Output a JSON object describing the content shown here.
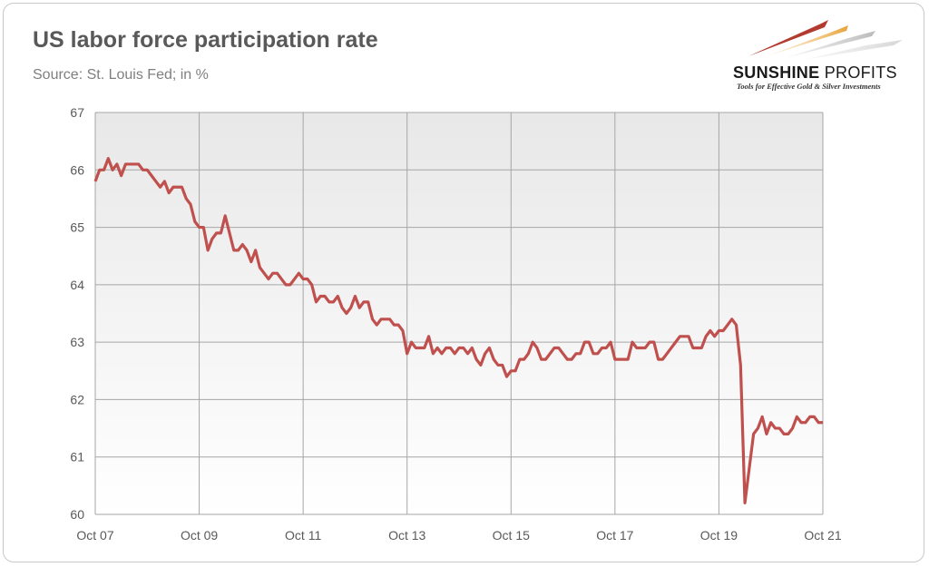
{
  "header": {
    "title": "US labor force participation rate",
    "subtitle": "Source: St. Louis Fed; in %"
  },
  "logo": {
    "name_bold": "SUNSHINE",
    "name_light": "PROFITS",
    "tagline": "Tools for Effective Gold & Silver Investments"
  },
  "colors": {
    "line": "#c0504d",
    "grid": "#a6a6a6",
    "plot_bg_top": "#e8e8e8",
    "plot_bg_bottom": "#ffffff"
  },
  "chart_data": {
    "type": "line",
    "title": "US labor force participation rate",
    "subtitle": "Source: St. Louis Fed; in %",
    "xlabel": "",
    "ylabel": "",
    "x_start": "Oct 07",
    "x_end": "Oct 21",
    "x_ticks": [
      "Oct 07",
      "Oct 09",
      "Oct 11",
      "Oct 13",
      "Oct 15",
      "Oct 17",
      "Oct 19",
      "Oct 21"
    ],
    "ylim": [
      60,
      67
    ],
    "y_ticks": [
      "60",
      "61",
      "62",
      "63",
      "64",
      "65",
      "66",
      "67"
    ],
    "grid": true,
    "legend": "none",
    "series": [
      {
        "frequency": "monthly",
        "values": [
          65.8,
          66.0,
          66.0,
          66.2,
          66.0,
          66.1,
          65.9,
          66.1,
          66.1,
          66.1,
          66.1,
          66.0,
          66.0,
          65.9,
          65.8,
          65.7,
          65.8,
          65.6,
          65.7,
          65.7,
          65.7,
          65.5,
          65.4,
          65.1,
          65.0,
          65.0,
          64.6,
          64.8,
          64.9,
          64.9,
          65.2,
          64.9,
          64.6,
          64.6,
          64.7,
          64.6,
          64.4,
          64.6,
          64.3,
          64.2,
          64.1,
          64.2,
          64.2,
          64.1,
          64.0,
          64.0,
          64.1,
          64.2,
          64.1,
          64.1,
          64.0,
          63.7,
          63.8,
          63.8,
          63.7,
          63.7,
          63.8,
          63.6,
          63.5,
          63.6,
          63.8,
          63.6,
          63.7,
          63.7,
          63.4,
          63.3,
          63.4,
          63.4,
          63.4,
          63.3,
          63.3,
          63.2,
          62.8,
          63.0,
          62.9,
          62.9,
          62.9,
          63.1,
          62.8,
          62.9,
          62.8,
          62.9,
          62.9,
          62.8,
          62.9,
          62.9,
          62.8,
          62.9,
          62.7,
          62.6,
          62.8,
          62.9,
          62.7,
          62.6,
          62.6,
          62.4,
          62.5,
          62.5,
          62.7,
          62.7,
          62.8,
          63.0,
          62.9,
          62.7,
          62.7,
          62.8,
          62.9,
          62.9,
          62.8,
          62.7,
          62.7,
          62.8,
          62.8,
          63.0,
          63.0,
          62.8,
          62.8,
          62.9,
          62.9,
          63.0,
          62.7,
          62.7,
          62.7,
          62.7,
          63.0,
          62.9,
          62.9,
          62.9,
          63.0,
          63.0,
          62.7,
          62.7,
          62.8,
          62.9,
          63.0,
          63.1,
          63.1,
          63.1,
          62.9,
          62.9,
          62.9,
          63.1,
          63.2,
          63.1,
          63.2,
          63.2,
          63.3,
          63.4,
          63.3,
          62.6,
          60.2,
          60.8,
          61.4,
          61.5,
          61.7,
          61.4,
          61.6,
          61.5,
          61.5,
          61.4,
          61.4,
          61.5,
          61.7,
          61.6,
          61.6,
          61.7,
          61.7,
          61.6,
          61.6
        ]
      }
    ]
  }
}
